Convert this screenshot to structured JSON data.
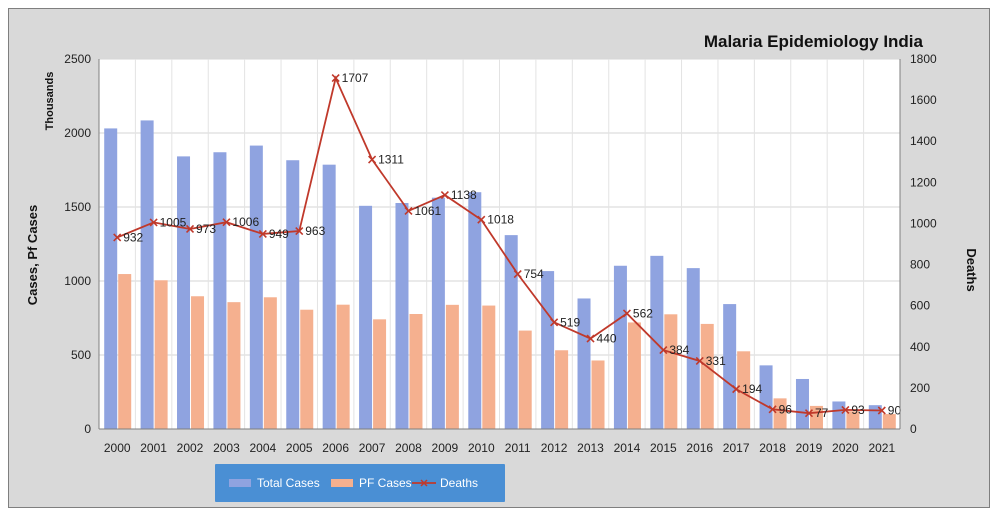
{
  "chart_data": {
    "type": "bar",
    "title": "Malaria Epidemiology India",
    "units_label": "Thousands",
    "ylabel": "Cases, Pf Cases",
    "y2label": "Deaths",
    "categories": [
      "2000",
      "2001",
      "2002",
      "2003",
      "2004",
      "2005",
      "2006",
      "2007",
      "2008",
      "2009",
      "2010",
      "2011",
      "2012",
      "2013",
      "2014",
      "2015",
      "2016",
      "2017",
      "2018",
      "2019",
      "2020",
      "2021"
    ],
    "ylim": [
      0,
      2500
    ],
    "yticks": [
      0,
      500,
      1000,
      1500,
      2000,
      2500
    ],
    "y2lim": [
      0,
      1800
    ],
    "y2ticks": [
      0,
      200,
      400,
      600,
      800,
      1000,
      1200,
      1400,
      1600,
      1800
    ],
    "grid": true,
    "legend_position": "bottom",
    "series": [
      {
        "name": "Total Cases",
        "type": "bar",
        "axis": "left",
        "color": "#8fa3e0",
        "values": [
          2031,
          2085,
          1842,
          1870,
          1915,
          1816,
          1786,
          1508,
          1527,
          1563,
          1600,
          1310,
          1067,
          882,
          1103,
          1170,
          1087,
          844,
          430,
          338,
          186,
          161
        ]
      },
      {
        "name": "PF Cases",
        "type": "bar",
        "axis": "left",
        "color": "#f5b08f",
        "values": [
          1047,
          1005,
          897,
          857,
          890,
          806,
          840,
          741,
          777,
          839,
          834,
          665,
          532,
          463,
          720,
          775,
          710,
          525,
          207,
          156,
          120,
          101
        ]
      },
      {
        "name": "Deaths",
        "type": "line",
        "axis": "right",
        "color": "#c0392b",
        "values": [
          932,
          1005,
          973,
          1006,
          949,
          963,
          1707,
          1311,
          1061,
          1138,
          1018,
          754,
          519,
          440,
          562,
          384,
          331,
          194,
          96,
          77,
          93,
          90
        ],
        "labels": [
          "932",
          "1005",
          "973",
          "1006",
          "949",
          "963",
          "1707",
          "1311",
          "1061",
          "1138",
          "1018",
          "754",
          "519",
          "440",
          "562",
          "384",
          "331",
          "194",
          "96",
          "77",
          "93",
          "90"
        ]
      }
    ]
  }
}
